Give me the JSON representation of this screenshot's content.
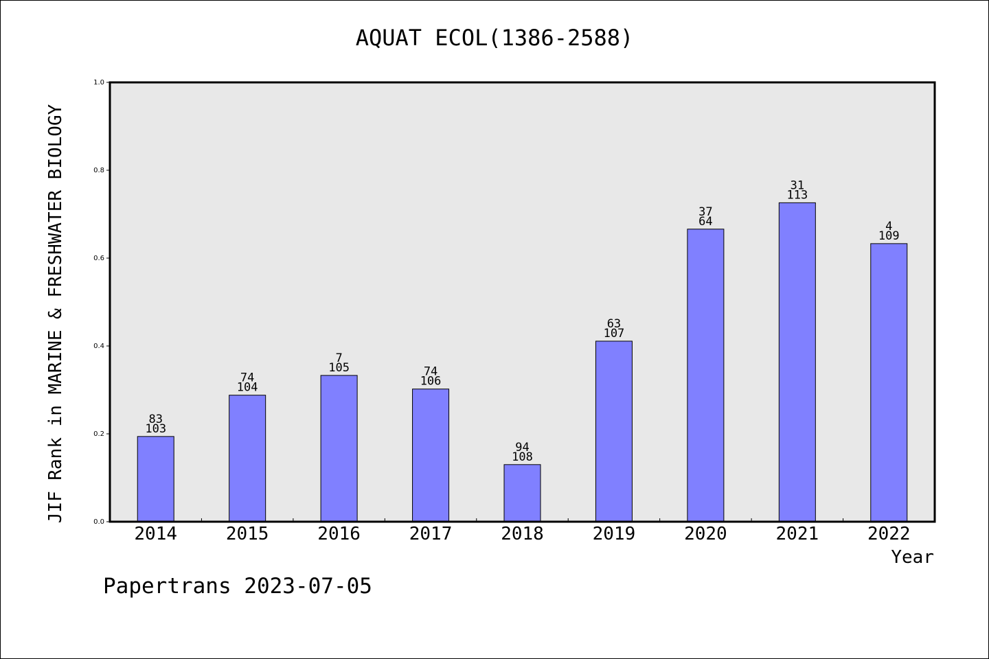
{
  "chart_data": {
    "type": "bar",
    "title": "AQUAT ECOL(1386-2588)",
    "ylabel": "JIF Rank in MARINE & FRESHWATER BIOLOGY",
    "xlabel": "Year",
    "ylim": [
      0,
      1.0
    ],
    "yticks": [
      "0.0",
      "0.2",
      "0.4",
      "0.6",
      "0.8",
      "1.0"
    ],
    "categories": [
      "2014",
      "2015",
      "2016",
      "2017",
      "2018",
      "2019",
      "2020",
      "2021",
      "2022"
    ],
    "values": [
      0.194,
      0.288,
      0.333,
      0.302,
      0.13,
      0.411,
      0.666,
      0.726,
      0.633
    ],
    "rank": [
      "83",
      "74",
      "7",
      "74",
      "94",
      "63",
      "37",
      "31",
      "4"
    ],
    "total": [
      "103",
      "104",
      "105",
      "106",
      "108",
      "107",
      "64",
      "113",
      "109"
    ],
    "bar_color": "#8080ff",
    "plot_bg": "#e8e8e8",
    "grid": false,
    "legend": "none"
  },
  "footer": "Papertrans 2023-07-05"
}
